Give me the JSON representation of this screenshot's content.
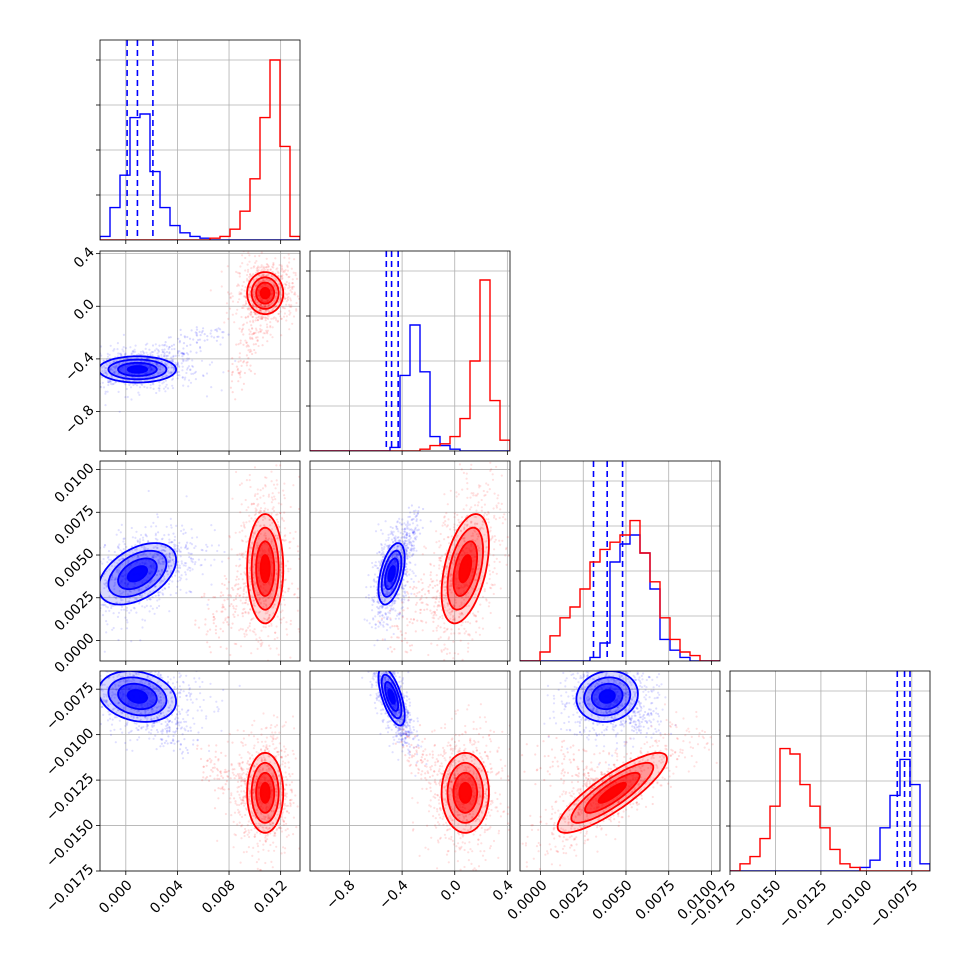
{
  "chart_data": {
    "type": "corner",
    "title": "",
    "parameters": [
      {
        "label": "",
        "range": [
          -0.002,
          0.0135
        ],
        "ticks": [
          0.0,
          0.004,
          0.008,
          0.012
        ],
        "tick_labels": [
          "0.000",
          "0.004",
          "0.008",
          "0.012"
        ]
      },
      {
        "label": "",
        "range": [
          -1.1,
          0.42
        ],
        "ticks": [
          -0.8,
          -0.4,
          0.0,
          0.4
        ],
        "tick_labels": [
          "−0.8",
          "−0.4",
          "0.0",
          "0.4"
        ]
      },
      {
        "label": "",
        "range": [
          -0.0012,
          0.0105
        ],
        "ticks": [
          0.0,
          0.0025,
          0.005,
          0.0075,
          0.01
        ],
        "tick_labels": [
          "0.0000",
          "0.0025",
          "0.0050",
          "0.0075",
          "0.0100"
        ]
      },
      {
        "label": "",
        "range": [
          -0.0175,
          -0.0065
        ],
        "ticks": [
          -0.0175,
          -0.015,
          -0.0125,
          -0.01,
          -0.0075
        ],
        "tick_labels": [
          "−0.0175",
          "−0.0150",
          "−0.0125",
          "−0.0100",
          "−0.0075"
        ]
      }
    ],
    "series": [
      {
        "color": "#0000ff",
        "quantiles": [
          [
            0.0001,
            0.0009,
            0.0021
          ],
          [
            -0.52,
            -0.48,
            -0.43
          ],
          [
            0.0031,
            0.0039,
            0.0048
          ],
          [
            -0.0083,
            -0.0079,
            -0.0076
          ]
        ],
        "histograms": [
          [
            0.02,
            0.18,
            0.36,
            0.68,
            0.7,
            0.38,
            0.18,
            0.08,
            0.04,
            0.02,
            0.01,
            0.0,
            0.0,
            0.0,
            0.0,
            0.0,
            0.0,
            0.0,
            0.0,
            0.0
          ],
          [
            0.0,
            0.0,
            0.0,
            0.0,
            0.0,
            0.0,
            0.0,
            0.0,
            0.02,
            0.42,
            0.7,
            0.44,
            0.08,
            0.03,
            0.01,
            0.0,
            0.0,
            0.0,
            0.0,
            0.0
          ],
          [
            0.0,
            0.0,
            0.0,
            0.0,
            0.0,
            0.0,
            0.0,
            0.02,
            0.1,
            0.55,
            0.65,
            0.7,
            0.6,
            0.4,
            0.12,
            0.06,
            0.02,
            0.0,
            0.0,
            0.0
          ],
          [
            0.0,
            0.0,
            0.0,
            0.0,
            0.0,
            0.0,
            0.0,
            0.0,
            0.0,
            0.0,
            0.0,
            0.0,
            0.0,
            0.02,
            0.06,
            0.24,
            0.42,
            0.62,
            0.48,
            0.04
          ]
        ],
        "pairs": [
          {
            "x": 0,
            "y": 1,
            "center": [
              0.0009,
              -0.48
            ],
            "sigma": [
              0.0015,
              0.05
            ],
            "rho": 0.0,
            "tail": [
              0.0065,
              -0.18
            ]
          },
          {
            "x": 0,
            "y": 2,
            "center": [
              0.0009,
              0.0039
            ],
            "sigma": [
              0.0015,
              0.0009
            ],
            "rho": 0.45,
            "tail": [
              0.0045,
              0.0055
            ]
          },
          {
            "x": 1,
            "y": 2,
            "center": [
              -0.48,
              0.0039
            ],
            "sigma": [
              0.05,
              0.0009
            ],
            "rho": 0.5,
            "tail": [
              -0.25,
              0.0075
            ]
          },
          {
            "x": 0,
            "y": 3,
            "center": [
              0.0009,
              -0.0079
            ],
            "sigma": [
              0.0015,
              0.0007
            ],
            "rho": -0.2,
            "tail": [
              0.0045,
              -0.0105
            ]
          },
          {
            "x": 1,
            "y": 3,
            "center": [
              -0.48,
              -0.0079
            ],
            "sigma": [
              0.05,
              0.0008
            ],
            "rho": -0.65,
            "tail": [
              -0.35,
              -0.0102
            ]
          },
          {
            "x": 2,
            "y": 3,
            "center": [
              0.0039,
              -0.0079
            ],
            "sigma": [
              0.0009,
              0.0007
            ],
            "rho": 0.1,
            "tail": [
              0.0065,
              -0.0095
            ]
          }
        ]
      },
      {
        "color": "#ff0000",
        "quantiles": [],
        "histograms": [
          [
            0.0,
            0.0,
            0.0,
            0.0,
            0.0,
            0.0,
            0.0,
            0.0,
            0.0,
            0.0,
            0.0,
            0.01,
            0.02,
            0.06,
            0.16,
            0.34,
            0.68,
            1.0,
            0.52,
            0.02
          ],
          [
            0.0,
            0.0,
            0.0,
            0.0,
            0.0,
            0.0,
            0.0,
            0.0,
            0.0,
            0.0,
            0.0,
            0.01,
            0.03,
            0.04,
            0.08,
            0.18,
            0.5,
            0.95,
            0.28,
            0.06
          ],
          [
            0.0,
            0.0,
            0.05,
            0.14,
            0.24,
            0.3,
            0.4,
            0.55,
            0.62,
            0.66,
            0.7,
            0.78,
            0.6,
            0.44,
            0.24,
            0.12,
            0.05,
            0.03,
            0.0,
            0.0
          ],
          [
            0.0,
            0.04,
            0.08,
            0.18,
            0.36,
            0.68,
            0.65,
            0.48,
            0.36,
            0.24,
            0.12,
            0.04,
            0.02,
            0.0,
            0.0,
            0.0,
            0.0,
            0.0,
            0.0,
            0.0
          ]
        ],
        "pairs": [
          {
            "x": 0,
            "y": 1,
            "center": [
              0.0108,
              0.1
            ],
            "sigma": [
              0.0007,
              0.08
            ],
            "rho": 0.0,
            "tail": [
              0.0085,
              -0.6
            ]
          },
          {
            "x": 0,
            "y": 2,
            "center": [
              0.0108,
              0.0042
            ],
            "sigma": [
              0.0007,
              0.0016
            ],
            "rho": 0.0,
            "tail": [
              0.006,
              0.0005
            ]
          },
          {
            "x": 1,
            "y": 2,
            "center": [
              0.08,
              0.0042
            ],
            "sigma": [
              0.09,
              0.0016
            ],
            "rho": 0.45,
            "tail": [
              -0.5,
              0.0005
            ]
          },
          {
            "x": 0,
            "y": 3,
            "center": [
              0.0108,
              -0.0132
            ],
            "sigma": [
              0.0007,
              0.0011
            ],
            "rho": 0.0,
            "tail": [
              0.006,
              -0.0115
            ]
          },
          {
            "x": 1,
            "y": 3,
            "center": [
              0.08,
              -0.0132
            ],
            "sigma": [
              0.09,
              0.0011
            ],
            "rho": 0.0,
            "tail": [
              -0.4,
              -0.0105
            ]
          },
          {
            "x": 2,
            "y": 3,
            "center": [
              0.0042,
              -0.0132
            ],
            "sigma": [
              0.0016,
              0.0011
            ],
            "rho": 0.85,
            "tail": [
              0.0005,
              -0.0108
            ]
          }
        ]
      }
    ],
    "grid": true,
    "legend": "none"
  }
}
